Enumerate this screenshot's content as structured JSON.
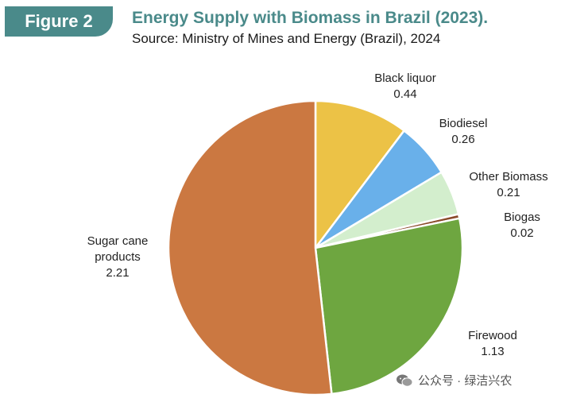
{
  "header": {
    "badge": "Figure 2",
    "title": "Energy Supply with Biomass in Brazil (2023).",
    "source": "Source: Ministry of Mines and Energy (Brazil), 2024"
  },
  "watermark": {
    "text": "公众号 · 绿洁兴农",
    "icon": "wechat-icon"
  },
  "chart_data": {
    "type": "pie",
    "title": "Energy Supply with Biomass in Brazil (2023).",
    "start": "12 o'clock",
    "direction": "clockwise",
    "slices": [
      {
        "label": "Black liquor",
        "value": 0.44,
        "color": "#ecc246"
      },
      {
        "label": "Biodiesel",
        "value": 0.26,
        "color": "#69b0ea"
      },
      {
        "label": "Other Biomass",
        "value": 0.21,
        "color": "#d3eecd"
      },
      {
        "label": "Biogas",
        "value": 0.02,
        "color": "#8a4a2a"
      },
      {
        "label": "Firewood",
        "value": 1.13,
        "color": "#6ea640"
      },
      {
        "label": "Sugar cane products",
        "value": 2.21,
        "color": "#cb7841"
      }
    ]
  }
}
